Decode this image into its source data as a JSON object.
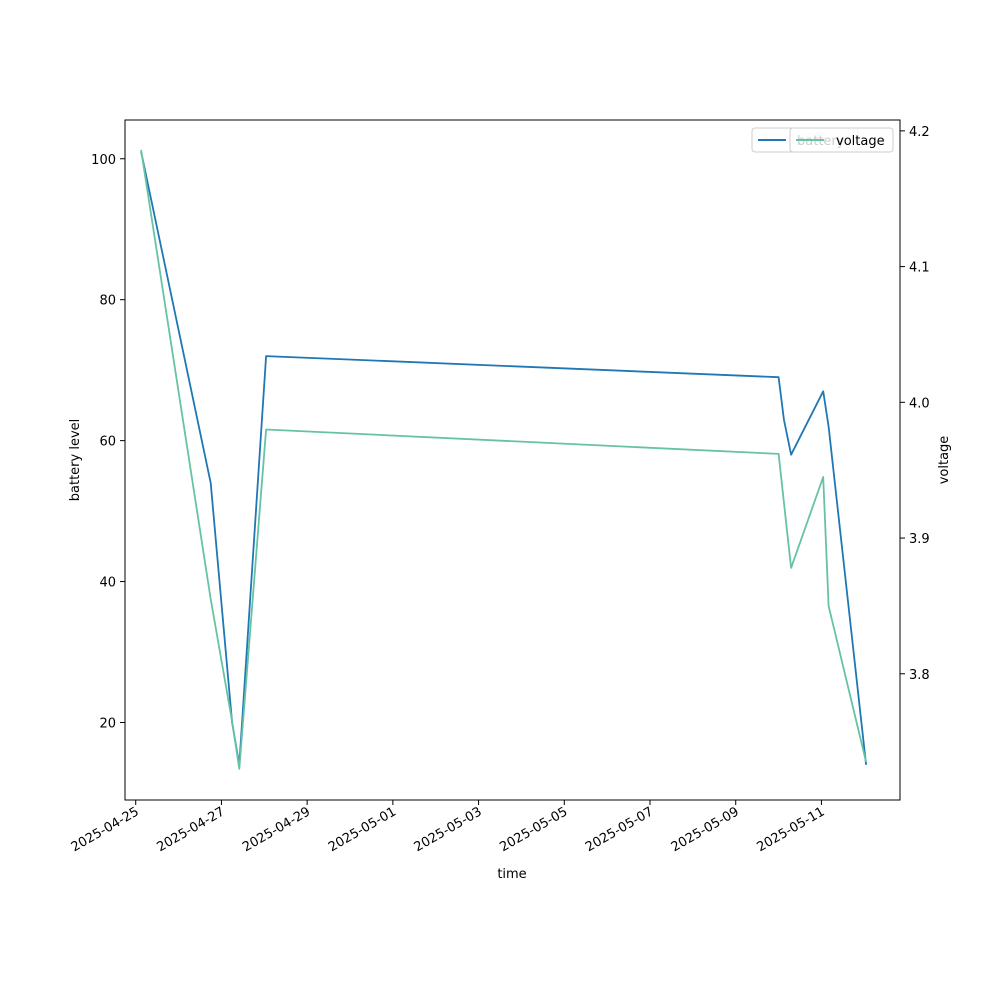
{
  "chart_data": {
    "type": "line",
    "xlabel": "time",
    "ylabel_left": "battery level",
    "ylabel_right": "voltage",
    "x_ticks": [
      "2025-04-25",
      "2025-04-27",
      "2025-04-29",
      "2025-05-01",
      "2025-05-03",
      "2025-05-05",
      "2025-05-07",
      "2025-05-09",
      "2025-05-11"
    ],
    "x_range": [
      "2025-04-24 18:00",
      "2025-05-12 20:00"
    ],
    "y_left_range": [
      9,
      105.5
    ],
    "y_left_ticks": [
      20,
      40,
      60,
      80,
      100
    ],
    "y_right_range": [
      3.707,
      4.208
    ],
    "y_right_ticks": [
      3.8,
      3.9,
      4.0,
      4.1,
      4.2
    ],
    "grid": false,
    "legend_placement": "top-right",
    "series": [
      {
        "name": "battery",
        "axis": "left",
        "color": "#1f77b4",
        "points": [
          {
            "t": "2025-04-25 03:00",
            "v": 101
          },
          {
            "t": "2025-04-26 18:00",
            "v": 54
          },
          {
            "t": "2025-04-27 06:00",
            "v": 20
          },
          {
            "t": "2025-04-27 10:00",
            "v": 14
          },
          {
            "t": "2025-04-28 01:00",
            "v": 72
          },
          {
            "t": "2025-05-10 00:00",
            "v": 69
          },
          {
            "t": "2025-05-10 03:00",
            "v": 63
          },
          {
            "t": "2025-05-10 07:00",
            "v": 58
          },
          {
            "t": "2025-05-11 01:00",
            "v": 67
          },
          {
            "t": "2025-05-11 04:00",
            "v": 62
          },
          {
            "t": "2025-05-12 01:00",
            "v": 14
          }
        ]
      },
      {
        "name": "voltage",
        "axis": "right",
        "color": "#66c2a5",
        "points": [
          {
            "t": "2025-04-25 03:00",
            "v": 4.186
          },
          {
            "t": "2025-04-26 18:00",
            "v": 3.855
          },
          {
            "t": "2025-04-27 06:00",
            "v": 3.765
          },
          {
            "t": "2025-04-27 10:00",
            "v": 3.73
          },
          {
            "t": "2025-04-28 01:00",
            "v": 3.98
          },
          {
            "t": "2025-05-10 00:00",
            "v": 3.962
          },
          {
            "t": "2025-05-10 07:00",
            "v": 3.878
          },
          {
            "t": "2025-05-11 01:00",
            "v": 3.945
          },
          {
            "t": "2025-05-11 04:00",
            "v": 3.85
          },
          {
            "t": "2025-05-12 01:00",
            "v": 3.735
          }
        ]
      }
    ]
  }
}
